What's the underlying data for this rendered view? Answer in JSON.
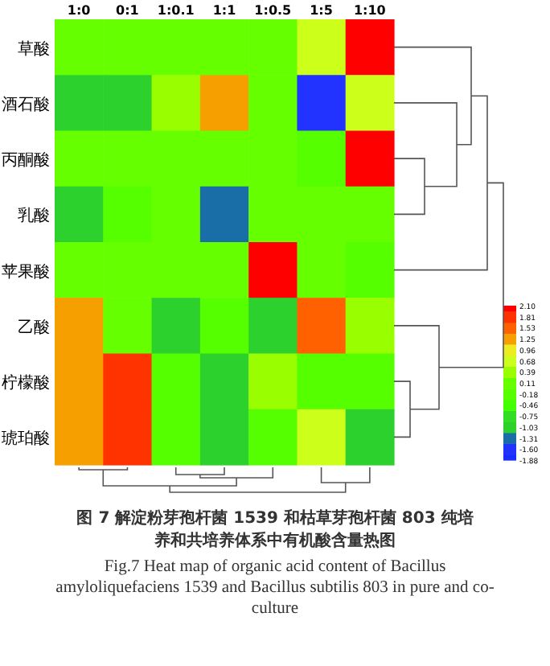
{
  "chart_data": {
    "type": "heatmap",
    "title": "图 7  解淀粉芽孢杆菌 1539 和枯草芽孢杆菌 803 纯培养和共培养体系中有机酸含量热图",
    "subtitle": "Fig.7  Heat map of organic acid content of Bacillus amyloliquefaciens 1539 and Bacillus subtilis 803 in pure and co-culture",
    "categories": [
      "1:0",
      "0:1",
      "1:0.1",
      "1:1",
      "1:0.5",
      "1:5",
      "1:10"
    ],
    "y_categories": [
      "草酸",
      "酒石酸",
      "丙酮酸",
      "乳酸",
      "苹果酸",
      "乙酸",
      "柠檬酸",
      "琥珀酸"
    ],
    "cells": [
      [
        0.2,
        0.2,
        0.2,
        0.2,
        0.2,
        0.8,
        2.0
      ],
      [
        -0.9,
        -0.9,
        0.5,
        1.25,
        0.2,
        -1.7,
        0.8
      ],
      [
        0.2,
        0.2,
        0.2,
        0.2,
        0.2,
        -0.3,
        2.0
      ],
      [
        -0.9,
        -0.3,
        0.2,
        -1.2,
        0.2,
        0.2,
        0.2
      ],
      [
        0.2,
        0.2,
        0.2,
        0.2,
        2.0,
        0.2,
        -0.3
      ],
      [
        1.25,
        0.2,
        -0.9,
        -0.3,
        -0.9,
        1.4,
        0.5
      ],
      [
        1.25,
        1.7,
        -0.3,
        -0.9,
        0.5,
        -0.3,
        -0.3
      ],
      [
        1.25,
        1.7,
        -0.3,
        -0.9,
        -0.3,
        0.8,
        -0.9
      ]
    ],
    "clim": [
      -1.88,
      2.1
    ],
    "cticks": [
      {
        "value": 2.1,
        "label": "2.10"
      },
      1.81,
      1.53,
      1.25,
      0.96,
      0.68,
      0.39,
      0.11,
      -0.18,
      -0.46,
      -0.75,
      -1.03,
      -1.31,
      {
        "value": -1.6,
        "label": "-1.60"
      },
      -1.88
    ]
  }
}
